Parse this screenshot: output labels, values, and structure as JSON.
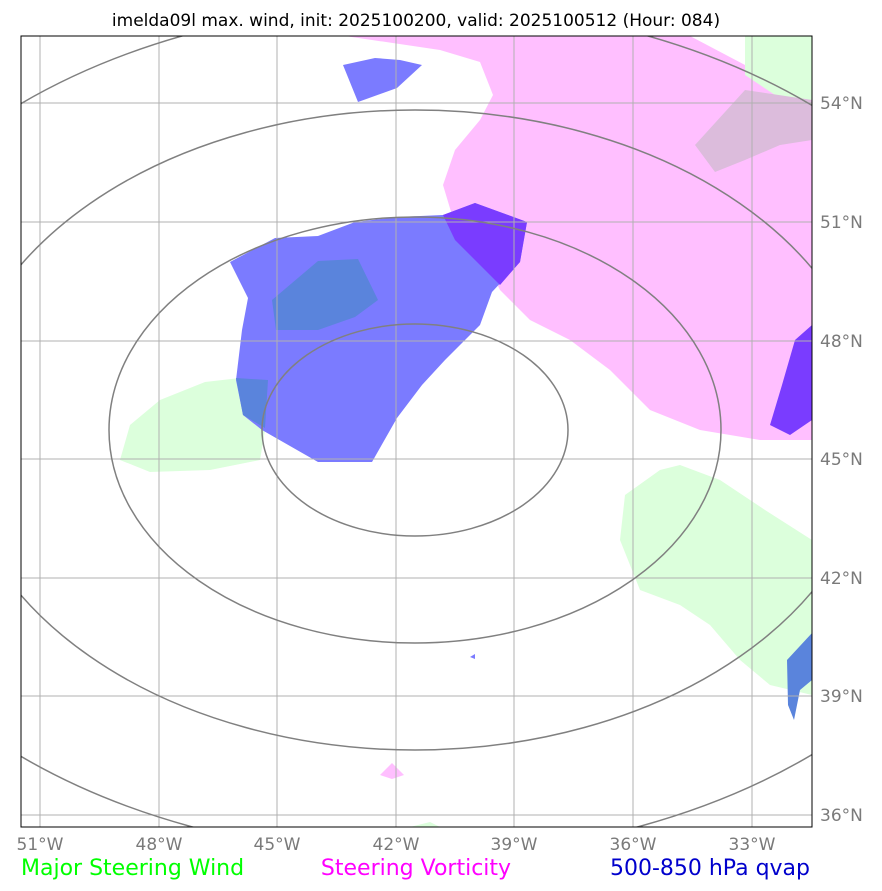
{
  "title": "imelda09l max. wind, init: 2025100200, valid: 2025100512 (Hour: 084)",
  "lon_ticks": [
    "51°W",
    "48°W",
    "45°W",
    "42°W",
    "39°W",
    "36°W",
    "33°W"
  ],
  "lat_ticks": [
    "54°N",
    "51°N",
    "48°N",
    "45°N",
    "42°N",
    "39°N",
    "36°N"
  ],
  "legend": [
    {
      "label": "Major Steering Wind",
      "color": "#00ff00"
    },
    {
      "label": "Steering Vorticity",
      "color": "#ff00ff"
    },
    {
      "label": "500-850 hPa qvap",
      "color": "#0000cc"
    }
  ],
  "colors": {
    "vorticity_fill": "#ffbfff",
    "wind_fill": "#dcffdc",
    "qvap_fill": "#7b7bff",
    "qvap_dark": "#5a84dc",
    "qvap_violet": "#7a3cff",
    "grid": "#b0b0b0",
    "range_rings": "#808080"
  }
}
